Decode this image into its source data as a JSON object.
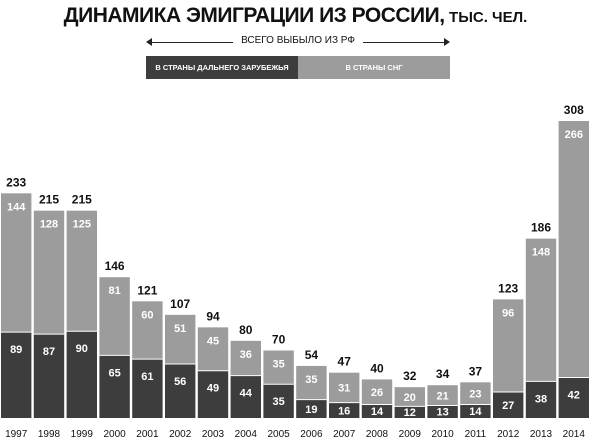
{
  "header": {
    "title": "ДИНАМИКА ЭМИГРАЦИИ ИЗ РОССИИ,",
    "unit": "ТЫС. ЧЕЛ."
  },
  "legend": {
    "total_label": "ВСЕГО ВЫБЫЛО ИЗ РФ",
    "far_abroad": "В СТРАНЫ ДАЛЬНЕГО ЗАРУБЕЖЬЯ",
    "cis": "В СТРАНЫ СНГ"
  },
  "colors": {
    "far_abroad": "#3d3d3d",
    "cis": "#9c9c9c",
    "text": "#111111"
  },
  "chart_data": {
    "type": "bar",
    "stacked": true,
    "title": "ДИНАМИКА ЭМИГРАЦИИ ИЗ РОССИИ, ТЫС. ЧЕЛ.",
    "categories": [
      "1997",
      "1998",
      "1999",
      "2000",
      "2001",
      "2002",
      "2003",
      "2004",
      "2005",
      "2006",
      "2007",
      "2008",
      "2009",
      "2010",
      "2011",
      "2012",
      "2013",
      "2014"
    ],
    "series": [
      {
        "name": "В СТРАНЫ ДАЛЬНЕГО ЗАРУБЕЖЬЯ",
        "values": [
          89,
          87,
          90,
          65,
          61,
          56,
          49,
          44,
          35,
          19,
          16,
          14,
          12,
          13,
          14,
          27,
          38,
          42
        ]
      },
      {
        "name": "В СТРАНЫ СНГ",
        "values": [
          144,
          128,
          125,
          81,
          60,
          51,
          45,
          36,
          35,
          35,
          31,
          26,
          20,
          21,
          23,
          96,
          148,
          266
        ]
      }
    ],
    "totals": [
      233,
      215,
      215,
      146,
      121,
      107,
      94,
      80,
      70,
      54,
      47,
      40,
      32,
      34,
      37,
      123,
      186,
      308
    ],
    "total_label": "ВСЕГО ВЫБЫЛО ИЗ РФ",
    "ylim": [
      0,
      308
    ],
    "grid": false,
    "legend_position": "top"
  }
}
